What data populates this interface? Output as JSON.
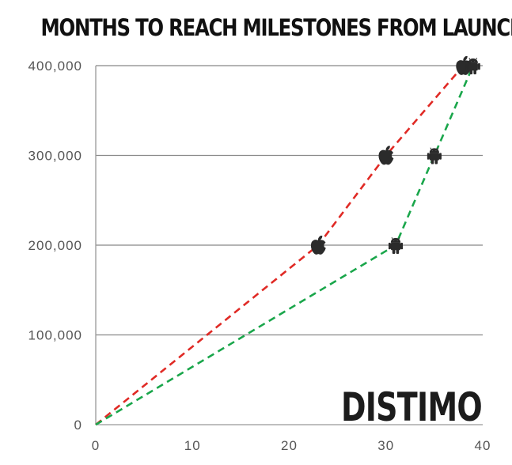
{
  "chart_data": {
    "type": "line",
    "title": "MONTHS TO REACH MILESTONES FROM LAUNCH",
    "xlabel": "",
    "ylabel": "",
    "xlim": [
      0,
      40
    ],
    "ylim": [
      0,
      400000
    ],
    "x_ticks": [
      0,
      10,
      20,
      30,
      40
    ],
    "x_tick_labels": [
      "0",
      "10",
      "20",
      "30",
      "40"
    ],
    "y_ticks": [
      0,
      100000,
      200000,
      300000,
      400000
    ],
    "y_tick_labels": [
      "0",
      "100,000",
      "200,000",
      "300,000",
      "400,000"
    ],
    "grid": "horizontal",
    "series": [
      {
        "platform": "apple",
        "color": "#e02a25",
        "style": "dashed",
        "marker_icon": "apple-logo-icon",
        "points": [
          {
            "x": 0,
            "y": 0
          },
          {
            "x": 23,
            "y": 200000
          },
          {
            "x": 30,
            "y": 300000
          },
          {
            "x": 38,
            "y": 400000
          }
        ]
      },
      {
        "platform": "android",
        "color": "#1aa64b",
        "style": "dashed",
        "marker_icon": "android-robot-icon",
        "points": [
          {
            "x": 0,
            "y": 0
          },
          {
            "x": 31,
            "y": 200000
          },
          {
            "x": 35,
            "y": 300000
          },
          {
            "x": 39,
            "y": 400000
          }
        ]
      }
    ]
  },
  "logo": {
    "text": "DISTIMO"
  },
  "colors": {
    "grid": "#888888",
    "axis": "#999999",
    "tick_label": "#555555",
    "icon": "#2b2b2b",
    "title": "#111111"
  }
}
